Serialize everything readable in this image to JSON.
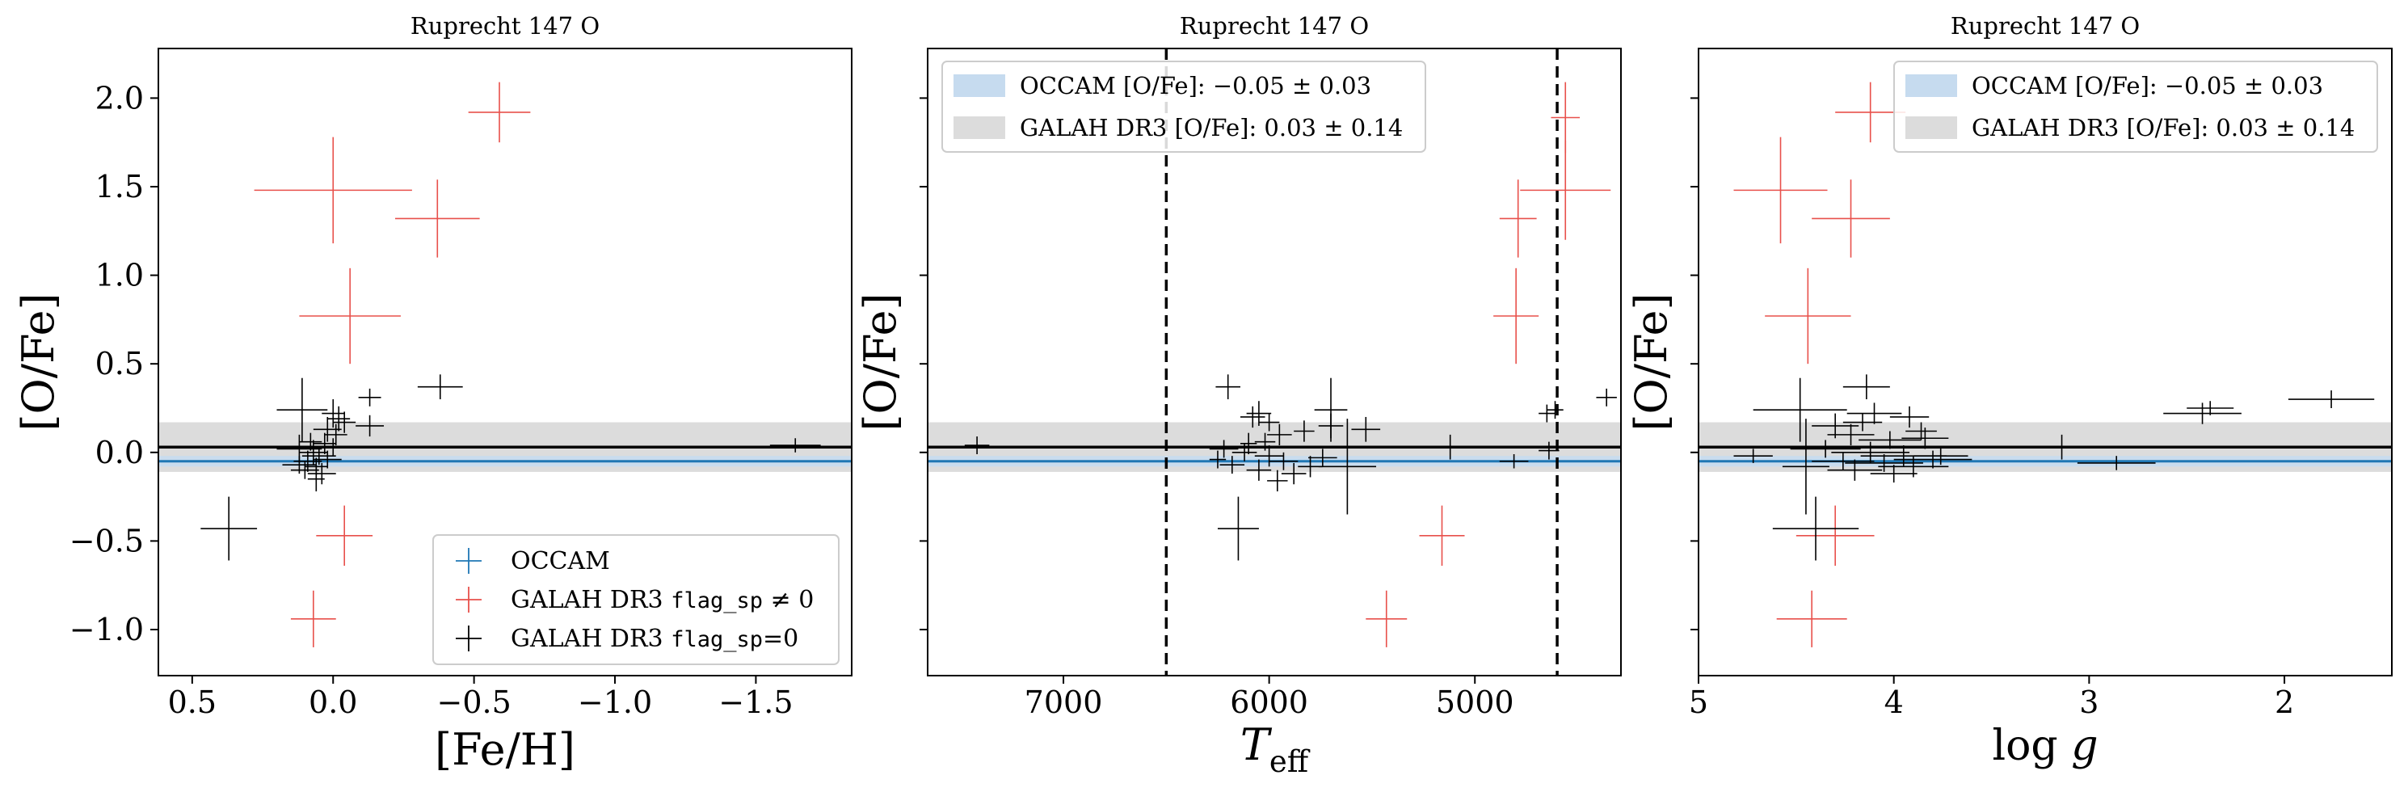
{
  "colors": {
    "occam": "#1f77b4",
    "occam_band": "#c6dbef",
    "galah_flagged": "#e8504b",
    "galah_ok": "#000000",
    "galah_band": "#dcdcdc",
    "galah_mean_line": "#000000",
    "teff_limits": "#000000"
  },
  "chart_data": [
    {
      "type": "scatter",
      "title": "Ruprecht 147 O",
      "xlabel": "[Fe/H]",
      "ylabel": "[O/Fe]",
      "xlim": [
        0.62,
        -1.84
      ],
      "ylim": [
        -1.26,
        2.28
      ],
      "xticks": [
        {
          "v": 0.5,
          "label": "0.5"
        },
        {
          "v": 0.0,
          "label": "0.0"
        },
        {
          "v": -0.5,
          "label": "−0.5"
        },
        {
          "v": -1.0,
          "label": "−1.0"
        },
        {
          "v": -1.5,
          "label": "−1.5"
        }
      ],
      "yticks": [
        {
          "v": 2.0,
          "label": "2.0"
        },
        {
          "v": 1.5,
          "label": "1.5"
        },
        {
          "v": 1.0,
          "label": "1.0"
        },
        {
          "v": 0.5,
          "label": "0.5"
        },
        {
          "v": 0.0,
          "label": "0.0"
        },
        {
          "v": -0.5,
          "label": "−0.5"
        },
        {
          "v": -1.0,
          "label": "−1.0"
        }
      ],
      "y_tick_labels_visible": true,
      "occam_band": {
        "mean": -0.05,
        "err": 0.03
      },
      "galah_band": {
        "mean": 0.03,
        "err": 0.14
      },
      "legend": {
        "position": "lower right",
        "items": [
          {
            "kind": "occam",
            "text": "OCCAM"
          },
          {
            "kind": "flagged",
            "text_pre": "GALAH DR3 ",
            "code": "flag_sp",
            "text_post": " ≠ 0"
          },
          {
            "kind": "ok",
            "text_pre": "GALAH DR3 ",
            "code": "flag_sp",
            "text_post": "=0"
          }
        ]
      },
      "series": [
        {
          "name": "GALAH DR3 flag_sp ≠ 0",
          "color_key": "galah_flagged",
          "points": [
            {
              "x": -0.59,
              "y": 1.92,
              "xerr": 0.11,
              "yerr": 0.17
            },
            {
              "x": 0.0,
              "y": 1.48,
              "xerr": 0.28,
              "yerr": 0.3
            },
            {
              "x": -0.37,
              "y": 1.32,
              "xerr": 0.15,
              "yerr": 0.22
            },
            {
              "x": -0.06,
              "y": 0.77,
              "xerr": 0.18,
              "yerr": 0.27
            },
            {
              "x": -0.04,
              "y": -0.47,
              "xerr": 0.1,
              "yerr": 0.17
            },
            {
              "x": 0.07,
              "y": -0.94,
              "xerr": 0.08,
              "yerr": 0.16
            }
          ]
        },
        {
          "name": "GALAH DR3 flag_sp=0",
          "color_key": "galah_ok",
          "points": [
            {
              "x": 0.37,
              "y": -0.43,
              "xerr": 0.1,
              "yerr": 0.18
            },
            {
              "x": -0.38,
              "y": 0.37,
              "xerr": 0.08,
              "yerr": 0.07
            },
            {
              "x": -1.64,
              "y": 0.04,
              "xerr": 0.09,
              "yerr": 0.04
            },
            {
              "x": -0.13,
              "y": 0.15,
              "xerr": 0.05,
              "yerr": 0.06
            },
            {
              "x": -0.13,
              "y": 0.31,
              "xerr": 0.04,
              "yerr": 0.05
            },
            {
              "x": 0.11,
              "y": 0.24,
              "xerr": 0.09,
              "yerr": 0.18
            },
            {
              "x": 0.0,
              "y": 0.22,
              "xerr": 0.04,
              "yerr": 0.08
            },
            {
              "x": -0.04,
              "y": 0.17,
              "xerr": 0.04,
              "yerr": 0.06
            },
            {
              "x": 0.02,
              "y": 0.13,
              "xerr": 0.05,
              "yerr": 0.07
            },
            {
              "x": -0.01,
              "y": 0.1,
              "xerr": 0.04,
              "yerr": 0.06
            },
            {
              "x": 0.03,
              "y": 0.05,
              "xerr": 0.04,
              "yerr": 0.06
            },
            {
              "x": 0.12,
              "y": 0.02,
              "xerr": 0.08,
              "yerr": 0.08
            },
            {
              "x": 0.07,
              "y": 0.0,
              "xerr": 0.05,
              "yerr": 0.07
            },
            {
              "x": 0.05,
              "y": -0.02,
              "xerr": 0.06,
              "yerr": 0.05
            },
            {
              "x": 0.09,
              "y": -0.05,
              "xerr": 0.05,
              "yerr": 0.06
            },
            {
              "x": 0.06,
              "y": -0.08,
              "xerr": 0.04,
              "yerr": 0.05
            },
            {
              "x": 0.1,
              "y": -0.1,
              "xerr": 0.05,
              "yerr": 0.05
            },
            {
              "x": 0.04,
              "y": -0.12,
              "xerr": 0.05,
              "yerr": 0.06
            },
            {
              "x": 0.08,
              "y": 0.06,
              "xerr": 0.04,
              "yerr": 0.05
            },
            {
              "x": 0.12,
              "y": -0.07,
              "xerr": 0.06,
              "yerr": 0.05
            },
            {
              "x": 0.06,
              "y": -0.15,
              "xerr": 0.03,
              "yerr": 0.07
            },
            {
              "x": 0.02,
              "y": -0.04,
              "xerr": 0.05,
              "yerr": 0.05
            },
            {
              "x": 0.0,
              "y": 0.03,
              "xerr": 0.04,
              "yerr": 0.05
            },
            {
              "x": -0.02,
              "y": 0.19,
              "xerr": 0.04,
              "yerr": 0.07
            }
          ]
        }
      ]
    },
    {
      "type": "scatter",
      "title": "Ruprecht 147 O",
      "xlabel": "T_eff",
      "ylabel": "[O/Fe]",
      "xlim": [
        7660,
        4290
      ],
      "ylim": [
        -1.26,
        2.28
      ],
      "xticks": [
        {
          "v": 7000,
          "label": "7000"
        },
        {
          "v": 6000,
          "label": "6000"
        },
        {
          "v": 5000,
          "label": "5000"
        }
      ],
      "yticks": [
        {
          "v": 2.0,
          "label": ""
        },
        {
          "v": 1.5,
          "label": ""
        },
        {
          "v": 1.0,
          "label": ""
        },
        {
          "v": 0.5,
          "label": ""
        },
        {
          "v": 0.0,
          "label": ""
        },
        {
          "v": -0.5,
          "label": ""
        },
        {
          "v": -1.0,
          "label": ""
        }
      ],
      "y_tick_labels_visible": false,
      "vlines": [
        6500,
        4600
      ],
      "occam_band": {
        "mean": -0.05,
        "err": 0.03
      },
      "galah_band": {
        "mean": 0.03,
        "err": 0.14
      },
      "legend": {
        "position": "upper left",
        "items": [
          {
            "kind": "band_occam",
            "text": "OCCAM [O/Fe]: −0.05 ± 0.03"
          },
          {
            "kind": "band_galah",
            "text": "GALAH DR3 [O/Fe]: 0.03 ± 0.14"
          }
        ]
      },
      "series": [
        {
          "name": "GALAH DR3 flag_sp ≠ 0",
          "color_key": "galah_flagged",
          "points": [
            {
              "x": 4560,
              "y": 1.89,
              "xerr": 70,
              "yerr": 0.2
            },
            {
              "x": 4560,
              "y": 1.48,
              "xerr": 220,
              "yerr": 0.28
            },
            {
              "x": 4790,
              "y": 1.32,
              "xerr": 90,
              "yerr": 0.22
            },
            {
              "x": 4800,
              "y": 0.77,
              "xerr": 110,
              "yerr": 0.27
            },
            {
              "x": 5160,
              "y": -0.47,
              "xerr": 110,
              "yerr": 0.17
            },
            {
              "x": 5430,
              "y": -0.94,
              "xerr": 100,
              "yerr": 0.16
            }
          ]
        },
        {
          "name": "GALAH DR3 flag_sp=0",
          "color_key": "galah_ok",
          "points": [
            {
              "x": 7420,
              "y": 0.04,
              "xerr": 60,
              "yerr": 0.05
            },
            {
              "x": 6200,
              "y": 0.37,
              "xerr": 60,
              "yerr": 0.07
            },
            {
              "x": 6150,
              "y": -0.43,
              "xerr": 100,
              "yerr": 0.18
            },
            {
              "x": 4360,
              "y": 0.31,
              "xerr": 50,
              "yerr": 0.05
            },
            {
              "x": 5700,
              "y": 0.24,
              "xerr": 80,
              "yerr": 0.18
            },
            {
              "x": 5700,
              "y": 0.15,
              "xerr": 60,
              "yerr": 0.07
            },
            {
              "x": 5530,
              "y": 0.13,
              "xerr": 70,
              "yerr": 0.07
            },
            {
              "x": 4650,
              "y": 0.22,
              "xerr": 40,
              "yerr": 0.05
            },
            {
              "x": 4610,
              "y": 0.24,
              "xerr": 40,
              "yerr": 0.05
            },
            {
              "x": 5120,
              "y": 0.03,
              "xerr": 110,
              "yerr": 0.07
            },
            {
              "x": 4810,
              "y": -0.05,
              "xerr": 70,
              "yerr": 0.04
            },
            {
              "x": 4640,
              "y": 0.01,
              "xerr": 50,
              "yerr": 0.05
            },
            {
              "x": 6050,
              "y": 0.22,
              "xerr": 60,
              "yerr": 0.07
            },
            {
              "x": 6000,
              "y": 0.17,
              "xerr": 50,
              "yerr": 0.05
            },
            {
              "x": 5950,
              "y": 0.1,
              "xerr": 60,
              "yerr": 0.06
            },
            {
              "x": 6100,
              "y": 0.05,
              "xerr": 40,
              "yerr": 0.06
            },
            {
              "x": 6220,
              "y": 0.02,
              "xerr": 70,
              "yerr": 0.05
            },
            {
              "x": 6120,
              "y": 0.0,
              "xerr": 60,
              "yerr": 0.05
            },
            {
              "x": 6000,
              "y": -0.02,
              "xerr": 70,
              "yerr": 0.06
            },
            {
              "x": 5930,
              "y": -0.05,
              "xerr": 70,
              "yerr": 0.05
            },
            {
              "x": 6180,
              "y": -0.07,
              "xerr": 60,
              "yerr": 0.05
            },
            {
              "x": 6050,
              "y": -0.1,
              "xerr": 60,
              "yerr": 0.06
            },
            {
              "x": 5880,
              "y": -0.12,
              "xerr": 60,
              "yerr": 0.06
            },
            {
              "x": 6250,
              "y": -0.04,
              "xerr": 40,
              "yerr": 0.05
            },
            {
              "x": 5800,
              "y": -0.08,
              "xerr": 60,
              "yerr": 0.06
            },
            {
              "x": 5740,
              "y": -0.03,
              "xerr": 70,
              "yerr": 0.05
            },
            {
              "x": 5620,
              "y": -0.08,
              "xerr": 140,
              "yerr": 0.27
            },
            {
              "x": 5830,
              "y": 0.12,
              "xerr": 50,
              "yerr": 0.06
            },
            {
              "x": 6080,
              "y": 0.2,
              "xerr": 60,
              "yerr": 0.06
            },
            {
              "x": 5960,
              "y": -0.16,
              "xerr": 50,
              "yerr": 0.06
            },
            {
              "x": 6020,
              "y": 0.06,
              "xerr": 50,
              "yerr": 0.05
            }
          ]
        }
      ]
    },
    {
      "type": "scatter",
      "title": "Ruprecht 147 O",
      "xlabel": "log g",
      "ylabel": "[O/Fe]",
      "xlim": [
        5.0,
        1.45
      ],
      "ylim": [
        -1.26,
        2.28
      ],
      "xticks": [
        {
          "v": 5,
          "label": "5"
        },
        {
          "v": 4,
          "label": "4"
        },
        {
          "v": 3,
          "label": "3"
        },
        {
          "v": 2,
          "label": "2"
        }
      ],
      "yticks": [
        {
          "v": 2.0,
          "label": ""
        },
        {
          "v": 1.5,
          "label": ""
        },
        {
          "v": 1.0,
          "label": ""
        },
        {
          "v": 0.5,
          "label": ""
        },
        {
          "v": 0.0,
          "label": ""
        },
        {
          "v": -0.5,
          "label": ""
        },
        {
          "v": -1.0,
          "label": ""
        }
      ],
      "y_tick_labels_visible": false,
      "occam_band": {
        "mean": -0.05,
        "err": 0.03
      },
      "galah_band": {
        "mean": 0.03,
        "err": 0.14
      },
      "legend": {
        "position": "upper right",
        "items": [
          {
            "kind": "band_occam",
            "text": "OCCAM [O/Fe]: −0.05 ± 0.03"
          },
          {
            "kind": "band_galah",
            "text": "GALAH DR3 [O/Fe]: 0.03 ± 0.14"
          }
        ]
      },
      "series": [
        {
          "name": "GALAH DR3 flag_sp ≠ 0",
          "color_key": "galah_flagged",
          "points": [
            {
              "x": 4.12,
              "y": 1.92,
              "xerr": 0.18,
              "yerr": 0.17
            },
            {
              "x": 4.58,
              "y": 1.48,
              "xerr": 0.24,
              "yerr": 0.3
            },
            {
              "x": 4.22,
              "y": 1.32,
              "xerr": 0.2,
              "yerr": 0.22
            },
            {
              "x": 4.44,
              "y": 0.77,
              "xerr": 0.22,
              "yerr": 0.27
            },
            {
              "x": 4.3,
              "y": -0.47,
              "xerr": 0.2,
              "yerr": 0.17
            },
            {
              "x": 4.42,
              "y": -0.94,
              "xerr": 0.18,
              "yerr": 0.16
            }
          ]
        },
        {
          "name": "GALAH DR3 flag_sp=0",
          "color_key": "galah_ok",
          "points": [
            {
              "x": 4.14,
              "y": 0.37,
              "xerr": 0.12,
              "yerr": 0.07
            },
            {
              "x": 4.4,
              "y": -0.43,
              "xerr": 0.22,
              "yerr": 0.18
            },
            {
              "x": 1.76,
              "y": 0.3,
              "xerr": 0.22,
              "yerr": 0.05
            },
            {
              "x": 2.42,
              "y": 0.22,
              "xerr": 0.2,
              "yerr": 0.06
            },
            {
              "x": 2.38,
              "y": 0.25,
              "xerr": 0.12,
              "yerr": 0.04
            },
            {
              "x": 3.14,
              "y": 0.03,
              "xerr": 0.2,
              "yerr": 0.07
            },
            {
              "x": 2.86,
              "y": -0.06,
              "xerr": 0.2,
              "yerr": 0.04
            },
            {
              "x": 4.72,
              "y": -0.02,
              "xerr": 0.1,
              "yerr": 0.04
            },
            {
              "x": 4.48,
              "y": 0.24,
              "xerr": 0.24,
              "yerr": 0.18
            },
            {
              "x": 4.45,
              "y": -0.08,
              "xerr": 0.12,
              "yerr": 0.27
            },
            {
              "x": 4.3,
              "y": 0.15,
              "xerr": 0.12,
              "yerr": 0.07
            },
            {
              "x": 4.1,
              "y": 0.22,
              "xerr": 0.14,
              "yerr": 0.06
            },
            {
              "x": 3.92,
              "y": 0.2,
              "xerr": 0.1,
              "yerr": 0.06
            },
            {
              "x": 4.22,
              "y": 0.1,
              "xerr": 0.12,
              "yerr": 0.06
            },
            {
              "x": 4.02,
              "y": 0.07,
              "xerr": 0.16,
              "yerr": 0.05
            },
            {
              "x": 3.84,
              "y": 0.08,
              "xerr": 0.12,
              "yerr": 0.06
            },
            {
              "x": 4.35,
              "y": 0.02,
              "xerr": 0.18,
              "yerr": 0.05
            },
            {
              "x": 4.12,
              "y": 0.0,
              "xerr": 0.2,
              "yerr": 0.06
            },
            {
              "x": 3.95,
              "y": -0.02,
              "xerr": 0.22,
              "yerr": 0.06
            },
            {
              "x": 3.8,
              "y": -0.04,
              "xerr": 0.2,
              "yerr": 0.05
            },
            {
              "x": 4.05,
              "y": -0.06,
              "xerr": 0.2,
              "yerr": 0.05
            },
            {
              "x": 3.9,
              "y": -0.08,
              "xerr": 0.18,
              "yerr": 0.06
            },
            {
              "x": 4.2,
              "y": -0.1,
              "xerr": 0.14,
              "yerr": 0.06
            },
            {
              "x": 3.76,
              "y": -0.02,
              "xerr": 0.14,
              "yerr": 0.05
            },
            {
              "x": 4.26,
              "y": -0.05,
              "xerr": 0.16,
              "yerr": 0.05
            },
            {
              "x": 3.86,
              "y": 0.12,
              "xerr": 0.08,
              "yerr": 0.05
            },
            {
              "x": 4.0,
              "y": -0.12,
              "xerr": 0.12,
              "yerr": 0.05
            },
            {
              "x": 4.16,
              "y": 0.17,
              "xerr": 0.1,
              "yerr": 0.05
            }
          ]
        }
      ]
    }
  ]
}
